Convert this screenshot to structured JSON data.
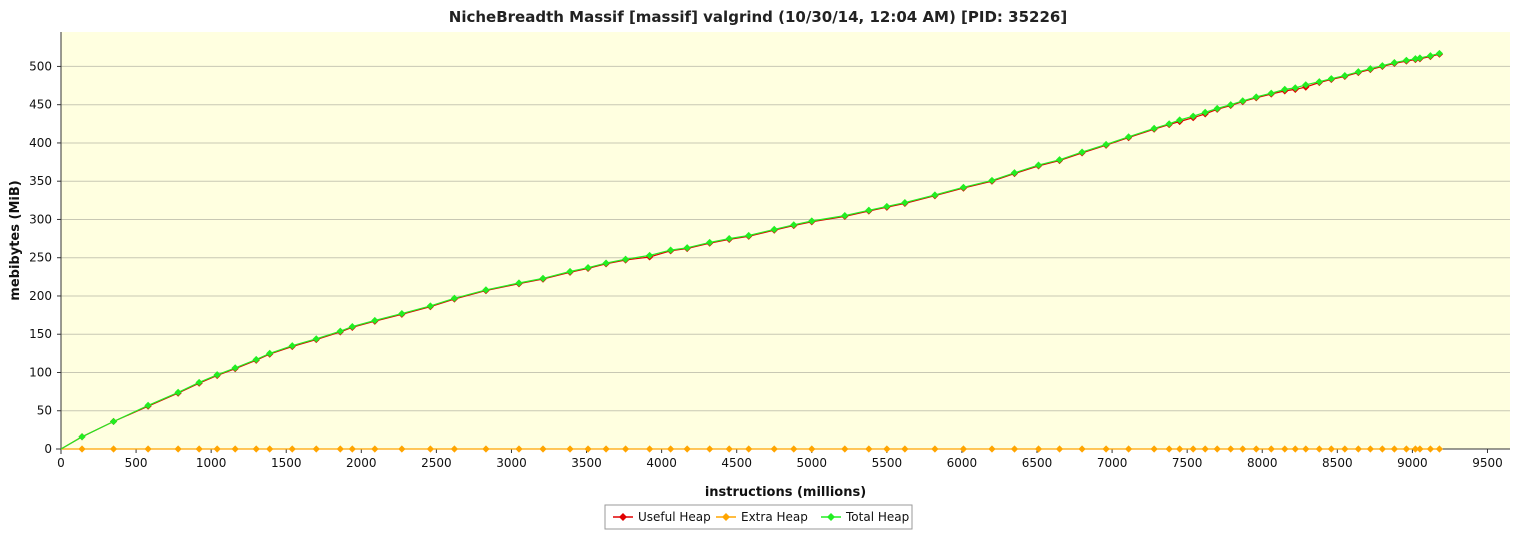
{
  "chart_data": {
    "type": "line",
    "title": "NicheBreadth Massif [massif] valgrind (10/30/14, 12:04 AM) [PID: 35226]",
    "xlabel": "instructions (millions)",
    "ylabel": "mebibytes (MiB)",
    "xlim": [
      0,
      9650
    ],
    "ylim": [
      0,
      545
    ],
    "xticks": [
      0,
      500,
      1000,
      1500,
      2000,
      2500,
      3000,
      3500,
      4000,
      4500,
      5000,
      5500,
      6000,
      6500,
      7000,
      7500,
      8000,
      8500,
      9000,
      9500
    ],
    "yticks": [
      0,
      50,
      100,
      150,
      200,
      250,
      300,
      350,
      400,
      450,
      500
    ],
    "grid": true,
    "legend_position": "bottom-center",
    "background_color": "#ffffe0",
    "x": [
      0,
      140,
      350,
      580,
      780,
      920,
      1040,
      1160,
      1300,
      1390,
      1540,
      1700,
      1860,
      1940,
      2090,
      2270,
      2460,
      2620,
      2830,
      3050,
      3210,
      3390,
      3510,
      3630,
      3760,
      3920,
      4060,
      4170,
      4320,
      4450,
      4580,
      4750,
      4880,
      5000,
      5220,
      5380,
      5500,
      5620,
      5820,
      6010,
      6200,
      6350,
      6510,
      6650,
      6800,
      6960,
      7110,
      7280,
      7380,
      7450,
      7540,
      7620,
      7700,
      7790,
      7870,
      7960,
      8060,
      8150,
      8220,
      8290,
      8380,
      8460,
      8550,
      8640,
      8720,
      8800,
      8880,
      8960,
      9020,
      9050,
      9120,
      9180
    ],
    "series": [
      {
        "name": "Useful Heap",
        "color": "#e00000",
        "values": [
          0,
          16,
          36,
          56,
          73,
          86,
          96,
          105,
          116,
          124,
          134,
          143,
          153,
          159,
          167,
          176,
          186,
          196,
          207,
          216,
          222,
          231,
          236,
          242,
          247,
          251,
          259,
          262,
          269,
          274,
          278,
          286,
          292,
          297,
          304,
          311,
          316,
          321,
          331,
          341,
          350,
          360,
          370,
          377,
          387,
          397,
          407,
          418,
          424,
          428,
          433,
          438,
          444,
          449,
          454,
          459,
          464,
          468,
          470,
          473,
          479,
          483,
          487,
          492,
          496,
          500,
          504,
          507,
          509,
          510,
          513,
          516
        ]
      },
      {
        "name": "Extra Heap",
        "color": "#ffa500",
        "values": [
          0,
          0,
          0,
          0,
          0,
          0,
          0,
          0,
          0,
          0,
          0,
          0,
          0,
          0,
          0,
          0,
          0,
          0,
          0,
          0,
          0,
          0,
          0,
          0,
          0,
          0,
          0,
          0,
          0,
          0,
          0,
          0,
          0,
          0,
          0,
          0,
          0,
          0,
          0,
          0,
          0,
          0,
          0,
          0,
          0,
          0,
          0,
          0,
          0,
          0,
          0,
          0,
          0,
          0,
          0,
          0,
          0,
          0,
          0,
          0,
          0,
          0,
          0,
          0,
          0,
          0,
          0,
          0,
          0,
          0,
          0,
          0
        ]
      },
      {
        "name": "Total Heap",
        "color": "#22ee22",
        "values": [
          0,
          16,
          36,
          57,
          74,
          87,
          97,
          106,
          117,
          125,
          135,
          144,
          154,
          160,
          168,
          177,
          187,
          197,
          208,
          217,
          223,
          232,
          237,
          243,
          248,
          253,
          260,
          263,
          270,
          275,
          279,
          287,
          293,
          298,
          305,
          312,
          317,
          322,
          332,
          342,
          351,
          361,
          371,
          378,
          388,
          398,
          408,
          419,
          425,
          430,
          435,
          440,
          445,
          450,
          455,
          460,
          465,
          470,
          472,
          476,
          480,
          484,
          488,
          493,
          497,
          501,
          505,
          508,
          510,
          511,
          514,
          517
        ]
      }
    ]
  }
}
